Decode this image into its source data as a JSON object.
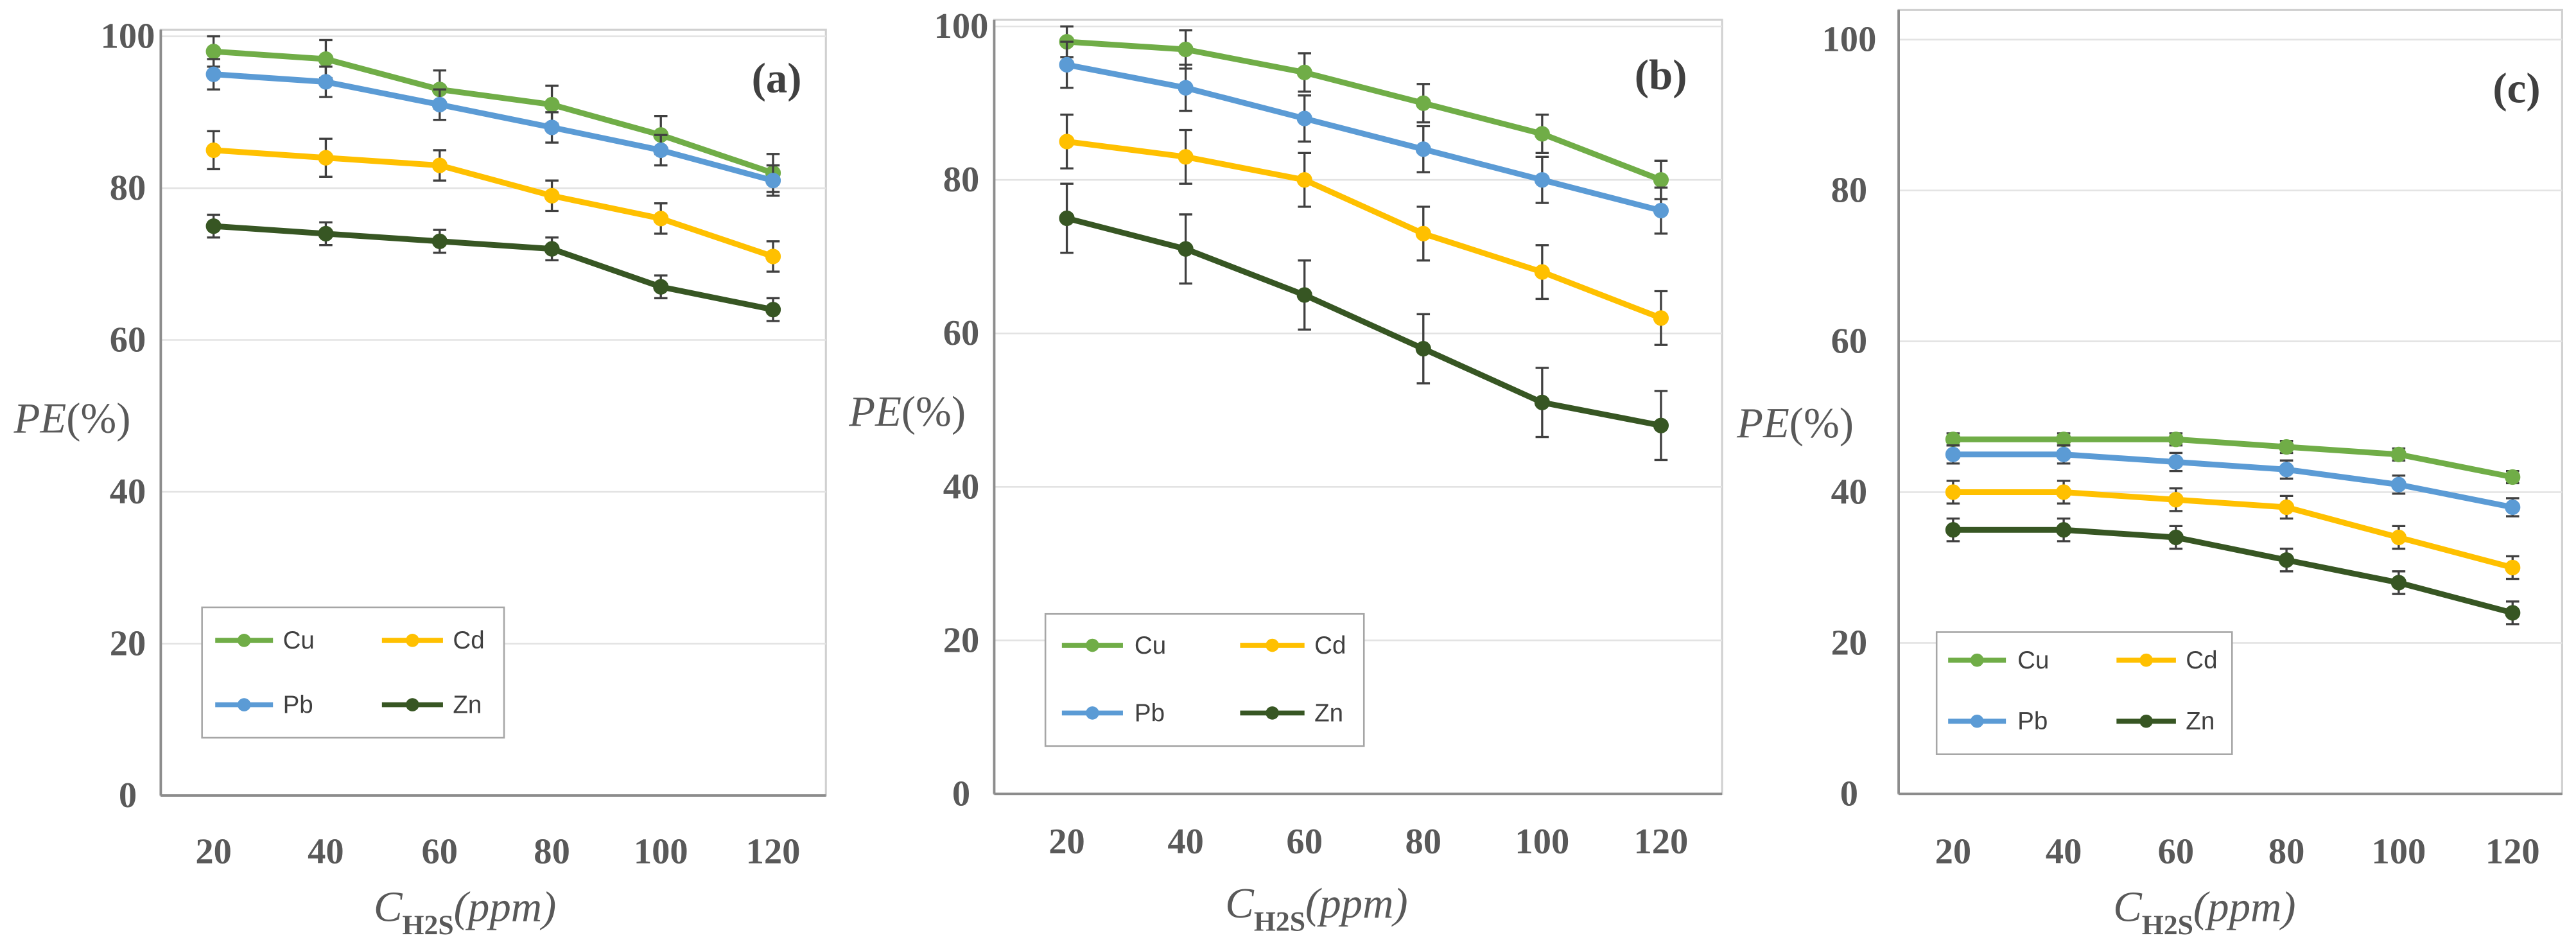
{
  "chart_data": [
    {
      "type": "line",
      "panel_label": "(a)",
      "categories": [
        20,
        40,
        60,
        80,
        100,
        120
      ],
      "ylim": [
        0,
        100
      ],
      "yticks": [
        0,
        20,
        40,
        60,
        80,
        100
      ],
      "ylabel": {
        "symbol": "PE",
        "unit": "(%)"
      },
      "xlabel": {
        "symbol": "C",
        "subscript": "H2S",
        "unit": "(ppm)"
      },
      "grid": true,
      "legend_position": "lower-left",
      "series": [
        {
          "name": "Cu",
          "color": "#70AD47",
          "values": [
            98,
            97,
            93,
            91,
            87,
            82
          ],
          "error": [
            2,
            2.5,
            2.5,
            2.5,
            2.5,
            2.5
          ]
        },
        {
          "name": "Cd",
          "color": "#FFC000",
          "values": [
            85,
            84,
            83,
            79,
            76,
            71
          ],
          "error": [
            2.5,
            2.5,
            2,
            2,
            2,
            2
          ]
        },
        {
          "name": "Pb",
          "color": "#5B9BD5",
          "values": [
            95,
            94,
            91,
            88,
            85,
            81
          ],
          "error": [
            2,
            2,
            2,
            2,
            2,
            2
          ]
        },
        {
          "name": "Zn",
          "color": "#375623",
          "values": [
            75,
            74,
            73,
            72,
            67,
            64
          ],
          "error": [
            1.5,
            1.5,
            1.5,
            1.5,
            1.5,
            1.5
          ]
        }
      ]
    },
    {
      "type": "line",
      "panel_label": "(b)",
      "categories": [
        20,
        40,
        60,
        80,
        100,
        120
      ],
      "ylim": [
        0,
        100
      ],
      "yticks": [
        0,
        20,
        40,
        60,
        80,
        100
      ],
      "ylabel": {
        "symbol": "PE",
        "unit": "(%)"
      },
      "xlabel": {
        "symbol": "C",
        "subscript": "H2S",
        "unit": "(ppm)"
      },
      "grid": true,
      "legend_position": "lower-left",
      "series": [
        {
          "name": "Cu",
          "color": "#70AD47",
          "values": [
            98,
            97,
            94,
            90,
            86,
            80
          ],
          "error": [
            2,
            2.5,
            2.5,
            2.5,
            2.5,
            2.5
          ]
        },
        {
          "name": "Cd",
          "color": "#FFC000",
          "values": [
            85,
            83,
            80,
            73,
            68,
            62
          ],
          "error": [
            3.5,
            3.5,
            3.5,
            3.5,
            3.5,
            3.5
          ]
        },
        {
          "name": "Pb",
          "color": "#5B9BD5",
          "values": [
            95,
            92,
            88,
            84,
            80,
            76
          ],
          "error": [
            3,
            3,
            3,
            3,
            3,
            3
          ]
        },
        {
          "name": "Zn",
          "color": "#375623",
          "values": [
            75,
            71,
            65,
            58,
            51,
            48
          ],
          "error": [
            4.5,
            4.5,
            4.5,
            4.5,
            4.5,
            4.5
          ]
        }
      ]
    },
    {
      "type": "line",
      "panel_label": "(c)",
      "categories": [
        20,
        40,
        60,
        80,
        100,
        120
      ],
      "ylim": [
        0,
        100
      ],
      "yticks": [
        0,
        20,
        40,
        60,
        80,
        100
      ],
      "ylabel": {
        "symbol": "PE",
        "unit": "(%)"
      },
      "xlabel": {
        "symbol": "C",
        "subscript": "H2S",
        "unit": "(ppm)"
      },
      "grid": true,
      "legend_position": "lower-left",
      "series": [
        {
          "name": "Cu",
          "color": "#70AD47",
          "values": [
            47,
            47,
            47,
            46,
            45,
            42
          ],
          "error": [
            0.8,
            0.8,
            0.8,
            0.8,
            0.8,
            0.8
          ]
        },
        {
          "name": "Cd",
          "color": "#FFC000",
          "values": [
            40,
            40,
            39,
            38,
            34,
            30
          ],
          "error": [
            1.5,
            1.5,
            1.5,
            1.5,
            1.5,
            1.5
          ]
        },
        {
          "name": "Pb",
          "color": "#5B9BD5",
          "values": [
            45,
            45,
            44,
            43,
            41,
            38
          ],
          "error": [
            1.2,
            1.2,
            1.2,
            1.2,
            1.2,
            1.2
          ]
        },
        {
          "name": "Zn",
          "color": "#375623",
          "values": [
            35,
            35,
            34,
            31,
            28,
            24
          ],
          "error": [
            1.5,
            1.5,
            1.5,
            1.5,
            1.5,
            1.5
          ]
        }
      ]
    }
  ]
}
